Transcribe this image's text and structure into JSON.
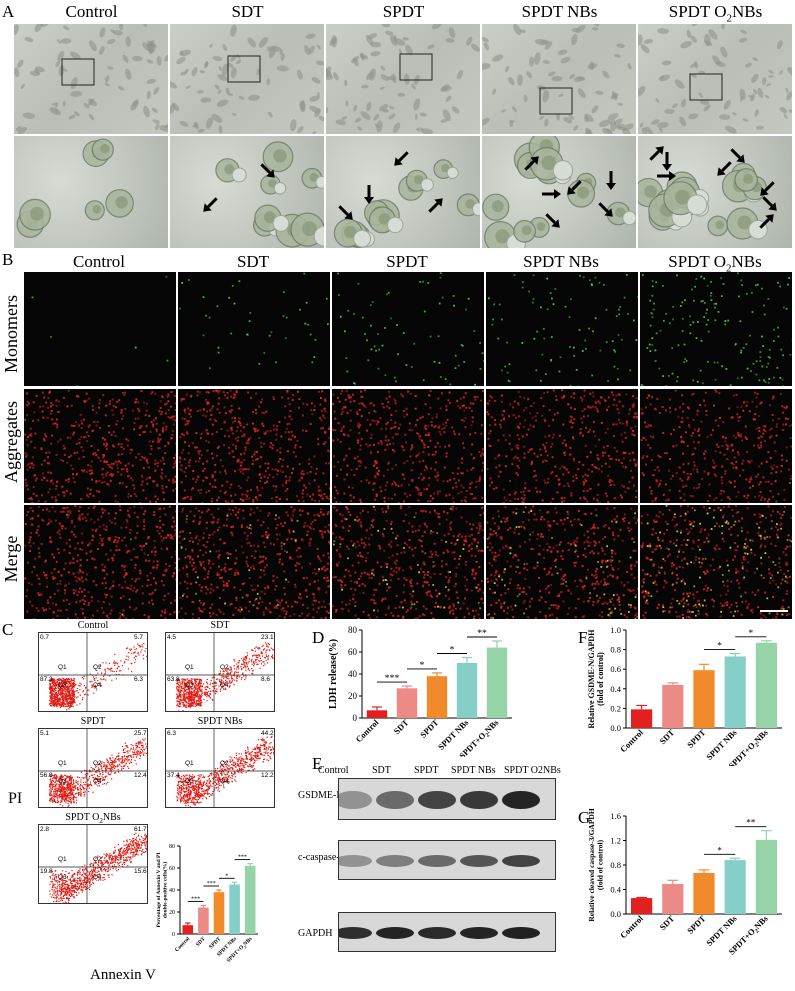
{
  "panel_letters": [
    "A",
    "B",
    "C",
    "D",
    "E",
    "F",
    "G"
  ],
  "groups": [
    "Control",
    "SDT",
    "SPDT",
    "SPDT NBs",
    "SPDT O2NBs"
  ],
  "panel_b": {
    "groups": [
      "Control",
      "SDT",
      "SPDT",
      "SPDT NBs",
      "SPDT O2NBs"
    ],
    "rows": [
      "Monomers",
      "Aggregates",
      "Merge"
    ]
  },
  "panel_c": {
    "titles": [
      "Control",
      "SDT",
      "SPDT",
      "SPDT NBs",
      "SPDT O2NBs"
    ],
    "quadrants": [
      {
        "ul": "0.7",
        "ur": "5.7",
        "ll": "87.3",
        "lr": "6.3"
      },
      {
        "ul": "4.5",
        "ur": "23.1",
        "ll": "63.8",
        "lr": "8.6"
      },
      {
        "ul": "5.1",
        "ur": "25.7",
        "ll": "56.8",
        "lr": "12.4"
      },
      {
        "ul": "6.3",
        "ur": "44.2",
        "ll": "37.4",
        "lr": "12.2"
      },
      {
        "ul": "2.8",
        "ur": "61.7",
        "ll": "19.8",
        "lr": "15.6"
      }
    ],
    "quad_names": [
      "Q1",
      "Q2",
      "Q3",
      "Q4"
    ],
    "ylabel": "PI",
    "xlabel": "Annexin V"
  },
  "panel_e": {
    "columns": [
      "Control",
      "SDT",
      "SPDT",
      "SPDT NBs",
      "SPDT O2NBs"
    ],
    "rows": [
      "GSDME-N",
      "c-caspase-3",
      "GAPDH"
    ]
  },
  "chart_data": [
    {
      "id": "C-bar",
      "type": "bar",
      "categories": [
        "Control",
        "SDT",
        "SPDT",
        "SPDT NBs",
        "SPDT+O2NBs"
      ],
      "values": [
        8,
        24,
        38,
        45,
        62
      ],
      "errors": [
        2,
        2,
        2,
        2,
        2
      ],
      "ylabel": "Percentage of Annexin V and PI double-positive cells(%)",
      "ylim": [
        0,
        80
      ],
      "yticks": [
        "0",
        "20",
        "40",
        "60",
        "80"
      ],
      "significance": [
        "***",
        "***",
        "*",
        "***"
      ],
      "colors": [
        "#e0211f",
        "#ec8a86",
        "#f08a2a",
        "#86cfc8",
        "#96d3a6"
      ]
    },
    {
      "id": "D",
      "type": "bar",
      "categories": [
        "Control",
        "SDT",
        "SPDT",
        "SPDT NBs",
        "SPDT+O2NBs"
      ],
      "values": [
        7,
        27,
        38,
        50,
        64
      ],
      "errors": [
        3,
        2,
        3,
        5,
        6
      ],
      "ylabel": "LDH release(%)",
      "ylim": [
        0,
        80
      ],
      "yticks": [
        "0",
        "20",
        "40",
        "60",
        "80"
      ],
      "significance": [
        "***",
        "*",
        "*",
        "**"
      ],
      "colors": [
        "#e0211f",
        "#ec8a86",
        "#f08a2a",
        "#86cfc8",
        "#96d3a6"
      ]
    },
    {
      "id": "F",
      "type": "bar",
      "categories": [
        "Control",
        "SDT",
        "SPDT",
        "SPDT NBs",
        "SPDT+O2NBs"
      ],
      "values": [
        0.19,
        0.44,
        0.59,
        0.73,
        0.87
      ],
      "errors": [
        0.04,
        0.02,
        0.06,
        0.03,
        0.02
      ],
      "ylabel": "Relative GSDME-N/GAPDH (fold of control)",
      "ylim": [
        0,
        1.0
      ],
      "yticks": [
        "0.0",
        "0.2",
        "0.4",
        "0.6",
        "0.8",
        "1.0"
      ],
      "significance": [
        "*",
        "*"
      ],
      "colors": [
        "#e0211f",
        "#ec8a86",
        "#f08a2a",
        "#86cfc8",
        "#96d3a6"
      ]
    },
    {
      "id": "G",
      "type": "bar",
      "categories": [
        "Control",
        "SDT",
        "SPDT",
        "SPDT NBs",
        "SPDT+O2NBs"
      ],
      "values": [
        0.26,
        0.49,
        0.67,
        0.88,
        1.21
      ],
      "errors": [
        0.01,
        0.06,
        0.05,
        0.03,
        0.15
      ],
      "ylabel": "Relative cleaved caspase-3/GAPDH (fold of control)",
      "ylim": [
        0,
        1.6
      ],
      "yticks": [
        "0.0",
        "0.4",
        "0.8",
        "1.2",
        "1.6"
      ],
      "significance": [
        "*",
        "**"
      ],
      "colors": [
        "#e0211f",
        "#ec8a86",
        "#f08a2a",
        "#86cfc8",
        "#96d3a6"
      ]
    }
  ]
}
